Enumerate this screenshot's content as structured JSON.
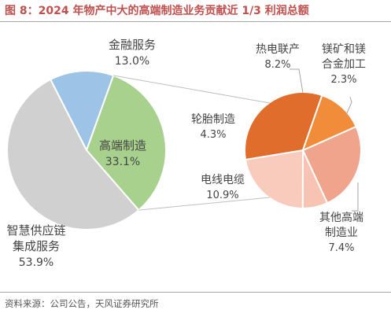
{
  "title": "图 8：2024 年物产中大的高端制造业务贡献近 1/3 利润总额",
  "source": "资料来源：公司公告，天风证券研究所",
  "chart_data": [
    {
      "type": "pie",
      "slices": [
        {
          "label_lines": [
            "金融服务"
          ],
          "value_text": "13.0%",
          "value": 13.0,
          "color": "#9dc3e6"
        },
        {
          "label_lines": [
            "高端制造"
          ],
          "value_text": "33.1%",
          "value": 33.1,
          "color": "#a9d18e"
        },
        {
          "label_lines": [
            "智慧供应链",
            "集成服务"
          ],
          "value_text": "53.9%",
          "value": 53.9,
          "color": "#d0d0d0"
        }
      ]
    },
    {
      "type": "pie",
      "slices": [
        {
          "label_lines": [
            "热电联产"
          ],
          "value_text": "8.2%",
          "value": 8.2,
          "color": "#f0a48b"
        },
        {
          "label_lines": [
            "镁矿和镁",
            "合金加工"
          ],
          "value_text": "2.3%",
          "value": 2.3,
          "color": "#f7c4b3"
        },
        {
          "label_lines": [
            "其他高端",
            "制造业"
          ],
          "value_text": "7.4%",
          "value": 7.4,
          "color": "#f8cbbd"
        },
        {
          "label_lines": [
            "电线电缆"
          ],
          "value_text": "10.9%",
          "value": 10.9,
          "color": "#e06d2c"
        },
        {
          "label_lines": [
            "轮胎制造"
          ],
          "value_text": "4.3%",
          "value": 4.3,
          "color": "#f08c3a"
        }
      ]
    }
  ],
  "colors": {
    "title": "#c0504d",
    "label": "#444444",
    "connector": "#bfbfbf"
  }
}
